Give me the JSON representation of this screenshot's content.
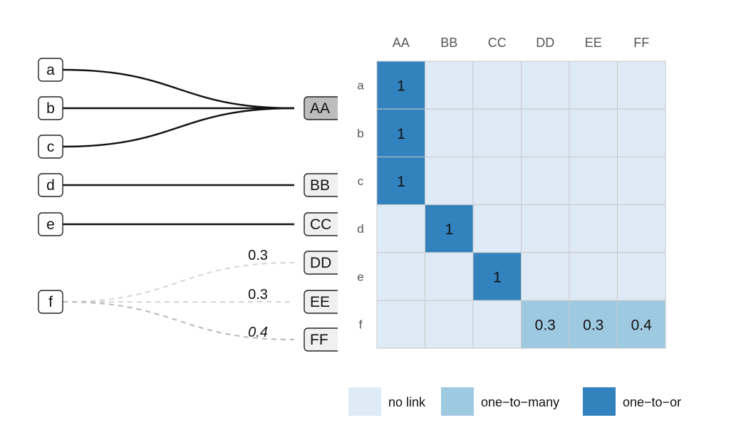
{
  "colors": {
    "no_link": "#deeaf6",
    "one_to_many": "#9ecae1",
    "one_to_one": "#3182bd",
    "source_edge": "#111111",
    "weighted_edge_light": "#d4d4d4",
    "weighted_edge_dark": "#b8b8b8",
    "highlight_target": "#bdbdbd",
    "target_fill": "#f0f0f0"
  },
  "sources": [
    "a",
    "b",
    "c",
    "d",
    "e",
    "f"
  ],
  "targets": [
    "AA",
    "BB",
    "CC",
    "DD",
    "EE",
    "FF"
  ],
  "links": [
    {
      "source": "a",
      "target": "AA",
      "weight": "",
      "kind": "one_to_one"
    },
    {
      "source": "b",
      "target": "AA",
      "weight": "",
      "kind": "one_to_one"
    },
    {
      "source": "c",
      "target": "AA",
      "weight": "",
      "kind": "one_to_one"
    },
    {
      "source": "d",
      "target": "BB",
      "weight": "",
      "kind": "one_to_one"
    },
    {
      "source": "e",
      "target": "CC",
      "weight": "",
      "kind": "one_to_one"
    },
    {
      "source": "f",
      "target": "DD",
      "weight": "0.3",
      "kind": "one_to_many"
    },
    {
      "source": "f",
      "target": "EE",
      "weight": "0.3",
      "kind": "one_to_many"
    },
    {
      "source": "f",
      "target": "FF",
      "weight": "0.4",
      "kind": "one_to_many"
    }
  ],
  "matrix": {
    "columns": [
      "AA",
      "BB",
      "CC",
      "DD",
      "EE",
      "FF"
    ],
    "rows": [
      "a",
      "b",
      "c",
      "d",
      "e",
      "f"
    ],
    "values": [
      [
        "1",
        "",
        "",
        "",
        "",
        ""
      ],
      [
        "1",
        "",
        "",
        "",
        "",
        ""
      ],
      [
        "1",
        "",
        "",
        "",
        "",
        ""
      ],
      [
        "",
        "1",
        "",
        "",
        "",
        ""
      ],
      [
        "",
        "",
        "1",
        "",
        "",
        ""
      ],
      [
        "",
        "",
        "",
        "0.3",
        "0.3",
        "0.4"
      ]
    ],
    "kinds": [
      [
        "one_to_one",
        "no_link",
        "no_link",
        "no_link",
        "no_link",
        "no_link"
      ],
      [
        "one_to_one",
        "no_link",
        "no_link",
        "no_link",
        "no_link",
        "no_link"
      ],
      [
        "one_to_one",
        "no_link",
        "no_link",
        "no_link",
        "no_link",
        "no_link"
      ],
      [
        "no_link",
        "one_to_one",
        "no_link",
        "no_link",
        "no_link",
        "no_link"
      ],
      [
        "no_link",
        "no_link",
        "one_to_one",
        "no_link",
        "no_link",
        "no_link"
      ],
      [
        "no_link",
        "no_link",
        "no_link",
        "one_to_many",
        "one_to_many",
        "one_to_many"
      ]
    ]
  },
  "legend": {
    "items": [
      {
        "key": "no_link",
        "label": "no link"
      },
      {
        "key": "one_to_many",
        "label": "one−to−many"
      },
      {
        "key": "one_to_one",
        "label": "one−to−or"
      }
    ]
  }
}
